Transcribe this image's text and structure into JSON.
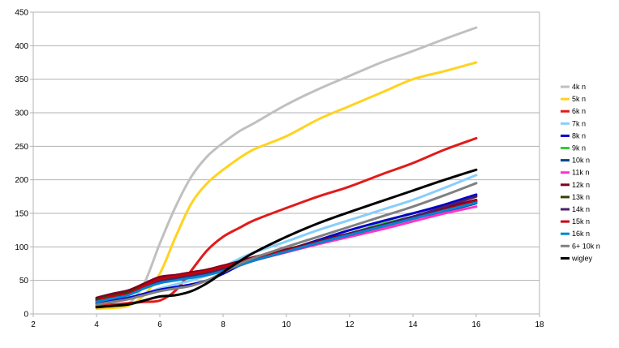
{
  "chart_data": {
    "type": "line",
    "title": "",
    "xlabel": "",
    "ylabel": "",
    "xlim": [
      2,
      18
    ],
    "ylim": [
      0,
      450
    ],
    "xticks": [
      2,
      4,
      6,
      8,
      10,
      12,
      14,
      16,
      18
    ],
    "yticks": [
      0,
      50,
      100,
      150,
      200,
      250,
      300,
      350,
      400,
      450
    ],
    "grid": "horizontal",
    "legend_position": "right",
    "x": [
      4,
      4.5,
      5,
      5.5,
      6,
      6.5,
      7,
      7.5,
      8,
      8.5,
      9,
      10,
      11,
      12,
      13,
      14,
      15,
      16
    ],
    "series": [
      {
        "name": "4k n",
        "color": "#c0c0c0",
        "values": [
          8,
          10,
          15,
          45,
          105,
          160,
          205,
          235,
          255,
          272,
          285,
          312,
          335,
          355,
          375,
          392,
          410,
          427
        ]
      },
      {
        "name": "5k n",
        "color": "#ffd320",
        "values": [
          8,
          9,
          12,
          28,
          60,
          115,
          165,
          195,
          215,
          232,
          246,
          265,
          290,
          310,
          330,
          350,
          362,
          375
        ]
      },
      {
        "name": "6k n",
        "color": "#e21a1a",
        "values": [
          12,
          14,
          16,
          18,
          20,
          35,
          65,
          95,
          115,
          128,
          140,
          158,
          175,
          190,
          208,
          225,
          245,
          262
        ]
      },
      {
        "name": "7k n",
        "color": "#87cefa",
        "values": [
          15,
          18,
          22,
          30,
          38,
          44,
          50,
          58,
          70,
          82,
          92,
          108,
          125,
          140,
          155,
          170,
          188,
          207
        ]
      },
      {
        "name": "8k n",
        "color": "#0000c8",
        "values": [
          16,
          20,
          24,
          30,
          36,
          40,
          44,
          50,
          60,
          72,
          82,
          95,
          110,
          125,
          138,
          150,
          163,
          178
        ]
      },
      {
        "name": "9k n",
        "color": "#33cc33",
        "values": [
          22,
          26,
          30,
          40,
          48,
          52,
          56,
          60,
          66,
          74,
          82,
          94,
          108,
          120,
          134,
          145,
          157,
          168
        ]
      },
      {
        "name": "10k n",
        "color": "#004586",
        "values": [
          22,
          27,
          32,
          42,
          50,
          54,
          58,
          62,
          68,
          76,
          84,
          96,
          108,
          120,
          132,
          143,
          153,
          165
        ]
      },
      {
        "name": "11k n",
        "color": "#ff33cc",
        "values": [
          22,
          26,
          30,
          40,
          48,
          52,
          56,
          60,
          66,
          72,
          80,
          92,
          104,
          115,
          126,
          138,
          150,
          160
        ]
      },
      {
        "name": "12k n",
        "color": "#7e0021",
        "values": [
          24,
          30,
          35,
          45,
          55,
          58,
          62,
          66,
          72,
          78,
          85,
          96,
          108,
          120,
          132,
          145,
          158,
          170
        ]
      },
      {
        "name": "13k n",
        "color": "#314004",
        "values": [
          22,
          27,
          32,
          42,
          50,
          54,
          58,
          62,
          68,
          74,
          81,
          93,
          106,
          118,
          130,
          142,
          155,
          167
        ]
      },
      {
        "name": "14k n",
        "color": "#4b1f6f",
        "values": [
          20,
          25,
          30,
          40,
          48,
          52,
          56,
          60,
          66,
          73,
          80,
          93,
          106,
          119,
          132,
          145,
          160,
          175
        ]
      },
      {
        "name": "15k n",
        "color": "#c5000b",
        "values": [
          20,
          26,
          30,
          42,
          52,
          56,
          60,
          64,
          70,
          76,
          82,
          94,
          106,
          118,
          130,
          142,
          155,
          168
        ]
      },
      {
        "name": "16k n",
        "color": "#0084d1",
        "values": [
          18,
          23,
          28,
          38,
          46,
          50,
          54,
          58,
          64,
          72,
          80,
          93,
          106,
          118,
          130,
          142,
          154,
          166
        ]
      },
      {
        "name": "6+ 10k n",
        "color": "#808080",
        "values": [
          14,
          18,
          22,
          28,
          34,
          38,
          42,
          50,
          62,
          74,
          84,
          100,
          115,
          130,
          145,
          160,
          177,
          195
        ]
      },
      {
        "name": "wigley",
        "color": "#000000",
        "values": [
          10,
          12,
          14,
          20,
          26,
          28,
          34,
          46,
          62,
          78,
          92,
          115,
          135,
          152,
          168,
          184,
          200,
          215
        ]
      }
    ]
  }
}
